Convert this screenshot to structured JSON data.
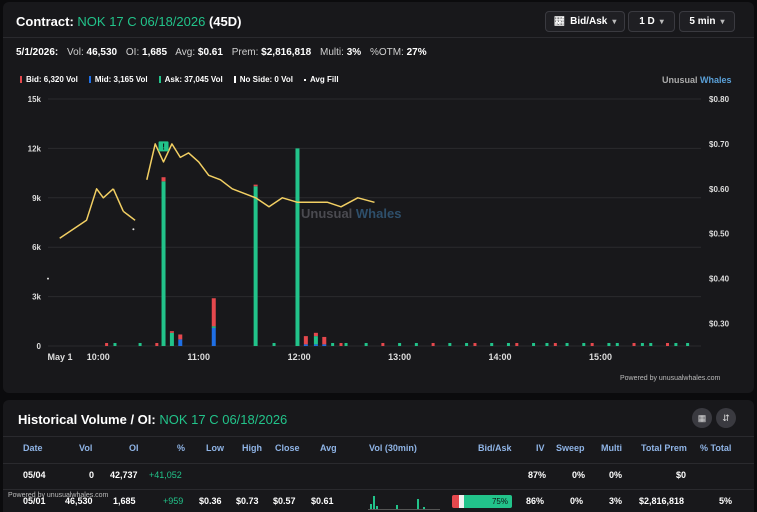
{
  "header": {
    "contract_label": "Contract:",
    "contract": "NOK 17 C 06/18/2026",
    "dte": "(45D)",
    "dropdowns": [
      {
        "label": "Bid/Ask",
        "icon": "chart-line-icon"
      },
      {
        "label": "1 D"
      },
      {
        "label": "5 min"
      }
    ]
  },
  "stats": {
    "date": "5/1/2026:",
    "vol_label": "Vol:",
    "vol": "46,530",
    "oi_label": "OI:",
    "oi": "1,685",
    "avg_label": "Avg:",
    "avg": "$0.61",
    "prem_label": "Prem:",
    "prem": "$2,816,818",
    "multi_label": "Multi:",
    "multi": "3%",
    "otm_label": "%OTM:",
    "otm": "27%"
  },
  "legend": [
    {
      "label": "Bid: 6,320 Vol",
      "color": "#e5484d"
    },
    {
      "label": "Mid: 3,165 Vol",
      "color": "#1f6fe5"
    },
    {
      "label": "Ask: 37,045 Vol",
      "color": "#22c38a"
    },
    {
      "label": "No Side: 0 Vol",
      "color": "#ffffff"
    },
    {
      "label": "Avg Fill",
      "color": "#ffffff"
    }
  ],
  "brand": {
    "a": "Unusual",
    "b": "Whales"
  },
  "watermark": {
    "a": "Unusual",
    "b": "Whales"
  },
  "powered_by": "Powered by unusualwhales.com",
  "colors": {
    "bid": "#e5484d",
    "mid": "#1f6fe5",
    "ask": "#22c38a",
    "line": "#f2cf63",
    "grid": "#2a2a2e"
  },
  "chart_data": {
    "type": "bar",
    "x_ticks": [
      "May 1",
      "10:00",
      "11:00",
      "12:00",
      "13:00",
      "14:00",
      "15:00"
    ],
    "y_left_ticks": [
      "15k",
      "12k",
      "9k",
      "6k",
      "3k",
      "0"
    ],
    "y_right_ticks": [
      "$0.80",
      "$0.70",
      "$0.60",
      "$0.50",
      "$0.40",
      "$0.30"
    ],
    "ylim_left": [
      0,
      15000
    ],
    "ylim_right": [
      0.25,
      0.8
    ],
    "bars": [
      {
        "t": "10:39",
        "ask": 10000,
        "mid": 0,
        "bid": 250
      },
      {
        "t": "10:44",
        "ask": 800,
        "mid": 0,
        "bid": 100
      },
      {
        "t": "10:49",
        "ask": 0,
        "mid": 400,
        "bid": 300
      },
      {
        "t": "11:09",
        "ask": 100,
        "mid": 1100,
        "bid": 1700
      },
      {
        "t": "11:34",
        "ask": 9700,
        "mid": 0,
        "bid": 100
      },
      {
        "t": "11:59",
        "ask": 12000,
        "mid": 0,
        "bid": 0
      },
      {
        "t": "12:04",
        "ask": 0,
        "mid": 100,
        "bid": 500
      },
      {
        "t": "12:10",
        "ask": 500,
        "mid": 100,
        "bid": 200
      },
      {
        "t": "12:15",
        "ask": 0,
        "mid": 100,
        "bid": 450
      }
    ],
    "avg_fill_series": [
      {
        "t": "09:30",
        "v": 0.4
      },
      {
        "t": "09:37",
        "v": 0.49
      },
      {
        "t": "09:45",
        "v": 0.51
      },
      {
        "t": "09:53",
        "v": 0.53
      },
      {
        "t": "09:59",
        "v": 0.6
      },
      {
        "t": "10:03",
        "v": 0.58
      },
      {
        "t": "10:09",
        "v": 0.6
      },
      {
        "t": "10:15",
        "v": 0.55
      },
      {
        "t": "10:22",
        "v": 0.53
      },
      {
        "t": "10:29",
        "v": 0.62
      },
      {
        "t": "10:34",
        "v": 0.7
      },
      {
        "t": "10:39",
        "v": 0.66
      },
      {
        "t": "10:44",
        "v": 0.7
      },
      {
        "t": "10:49",
        "v": 0.67
      },
      {
        "t": "10:54",
        "v": 0.68
      },
      {
        "t": "11:00",
        "v": 0.66
      },
      {
        "t": "11:06",
        "v": 0.63
      },
      {
        "t": "11:13",
        "v": 0.62
      },
      {
        "t": "11:20",
        "v": 0.6
      },
      {
        "t": "11:27",
        "v": 0.59
      },
      {
        "t": "11:34",
        "v": 0.58
      },
      {
        "t": "11:42",
        "v": 0.56
      },
      {
        "t": "11:50",
        "v": 0.58
      },
      {
        "t": "11:59",
        "v": 0.57
      },
      {
        "t": "12:08",
        "v": 0.57
      },
      {
        "t": "12:17",
        "v": 0.57
      },
      {
        "t": "12:25",
        "v": 0.56
      },
      {
        "t": "12:35",
        "v": 0.58
      },
      {
        "t": "12:45",
        "v": 0.57
      }
    ]
  },
  "historical": {
    "title": "Historical Volume / OI:",
    "contract": "NOK 17 C 06/18/2026",
    "headers": [
      "Date",
      "Vol",
      "OI",
      "%",
      "Low",
      "High",
      "Close",
      "Avg",
      "Vol (30min)",
      "Bid/Ask",
      "IV",
      "Sweep",
      "Multi",
      "Total Prem",
      "% Total"
    ],
    "powered_by": "Powered by unusualwhales.com",
    "rows": [
      {
        "date": "05/04",
        "vol": "0",
        "oi": "42,737",
        "pct": "+41,052",
        "low": "",
        "high": "",
        "close": "",
        "avg": "",
        "bidask": "",
        "iv": "87%",
        "sweep": "0%",
        "multi": "0%",
        "prem": "$0",
        "total": ""
      },
      {
        "date": "05/01",
        "vol": "46,530",
        "oi": "1,685",
        "pct": "+959",
        "low": "$0.36",
        "high": "$0.73",
        "close": "$0.57",
        "avg": "$0.61",
        "bidask": "75%",
        "iv": "86%",
        "sweep": "0%",
        "multi": "3%",
        "prem": "$2,816,818",
        "total": "5%"
      }
    ]
  }
}
